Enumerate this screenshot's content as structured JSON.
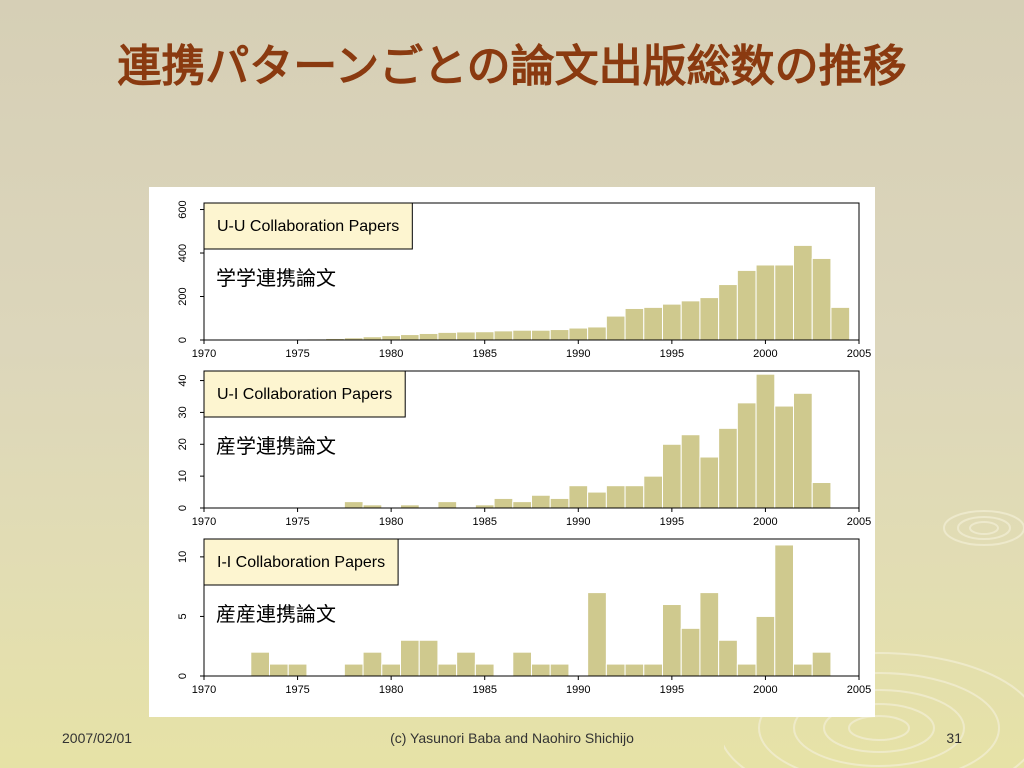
{
  "slide": {
    "title": "連携パターンごとの論文出版総数の推移",
    "footer_date": "2007/02/01",
    "footer_copyright": "(c) Yasunori Baba and Naohiro Shichijo",
    "page_number": "31"
  },
  "colors": {
    "title": "#8a3a10",
    "bar_fill": "#cfc98e",
    "bar_stroke": "#ffffff",
    "legend_box": "#fdf5d0",
    "background": "#d8d2b8"
  },
  "chart_data": [
    {
      "type": "bar",
      "panel": "top",
      "legend": "U-U Collaboration Papers",
      "annotation": "学学連携論文",
      "x": [
        1970,
        1971,
        1972,
        1973,
        1974,
        1975,
        1976,
        1977,
        1978,
        1979,
        1980,
        1981,
        1982,
        1983,
        1984,
        1985,
        1986,
        1987,
        1988,
        1989,
        1990,
        1991,
        1992,
        1993,
        1994,
        1995,
        1996,
        1997,
        1998,
        1999,
        2000,
        2001,
        2002,
        2003
      ],
      "values": [
        0,
        0,
        1,
        2,
        3,
        5,
        7,
        10,
        15,
        20,
        25,
        30,
        35,
        37,
        38,
        42,
        45,
        45,
        48,
        55,
        60,
        110,
        145,
        150,
        165,
        180,
        195,
        255,
        320,
        345,
        345,
        435,
        375,
        150
      ],
      "xticks": [
        "1970",
        "1975",
        "1980",
        "1985",
        "1990",
        "1995",
        "2000",
        "2005"
      ],
      "yticks": [
        "0",
        "200",
        "400",
        "600"
      ],
      "xlim": [
        1970,
        2005
      ],
      "ylim": [
        0,
        630
      ],
      "legend_position": "top-left"
    },
    {
      "type": "bar",
      "panel": "middle",
      "legend": "U-I Collaboration Papers",
      "annotation": "産学連携論文",
      "x": [
        1970,
        1971,
        1972,
        1973,
        1974,
        1975,
        1976,
        1977,
        1978,
        1979,
        1980,
        1981,
        1982,
        1983,
        1984,
        1985,
        1986,
        1987,
        1988,
        1989,
        1990,
        1991,
        1992,
        1993,
        1994,
        1995,
        1996,
        1997,
        1998,
        1999,
        2000,
        2001,
        2002,
        2003
      ],
      "values": [
        0,
        0,
        0,
        0,
        0,
        0,
        0,
        2,
        1,
        0,
        1,
        0,
        2,
        0,
        1,
        3,
        2,
        4,
        3,
        7,
        5,
        7,
        7,
        10,
        20,
        23,
        16,
        25,
        33,
        42,
        32,
        36,
        8,
        0
      ],
      "xticks": [
        "1970",
        "1975",
        "1980",
        "1985",
        "1990",
        "1995",
        "2000",
        "2005"
      ],
      "yticks": [
        "0",
        "10",
        "20",
        "30",
        "40"
      ],
      "xlim": [
        1970,
        2005
      ],
      "ylim": [
        0,
        43
      ],
      "legend_position": "top-left"
    },
    {
      "type": "bar",
      "panel": "bottom",
      "legend": "I-I Collaboration Papers",
      "annotation": "産産連携論文",
      "x": [
        1970,
        1971,
        1972,
        1973,
        1974,
        1975,
        1976,
        1977,
        1978,
        1979,
        1980,
        1981,
        1982,
        1983,
        1984,
        1985,
        1986,
        1987,
        1988,
        1989,
        1990,
        1991,
        1992,
        1993,
        1994,
        1995,
        1996,
        1997,
        1998,
        1999,
        2000,
        2001,
        2002,
        2003
      ],
      "values": [
        0,
        0,
        2,
        1,
        1,
        0,
        0,
        1,
        2,
        1,
        3,
        3,
        1,
        2,
        1,
        0,
        2,
        1,
        1,
        0,
        7,
        1,
        1,
        1,
        6,
        4,
        7,
        3,
        1,
        5,
        11,
        1,
        2,
        0
      ],
      "xticks": [
        "1970",
        "1975",
        "1980",
        "1985",
        "1990",
        "1995",
        "2000",
        "2005"
      ],
      "yticks": [
        "0",
        "5",
        "10"
      ],
      "xlim": [
        1970,
        2005
      ],
      "ylim": [
        0,
        11.5
      ],
      "legend_position": "top-left"
    }
  ]
}
